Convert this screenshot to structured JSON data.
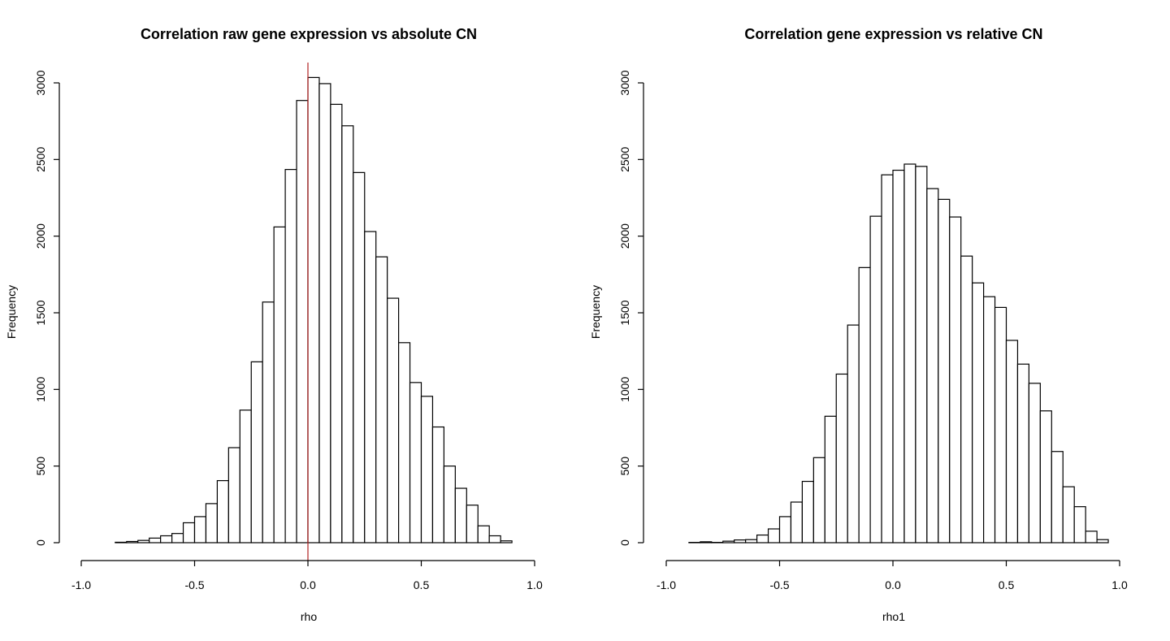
{
  "chart_data": [
    {
      "type": "histogram",
      "title": "Correlation raw gene expression vs absolute CN",
      "xlabel": "rho",
      "ylabel": "Frequency",
      "xlim": [
        -1.0,
        1.0
      ],
      "ylim": [
        0,
        3000
      ],
      "x_ticks": [
        "-1.0",
        "-0.5",
        "0.0",
        "0.5",
        "1.0"
      ],
      "y_ticks": [
        "0",
        "500",
        "1000",
        "1500",
        "2000",
        "2500",
        "3000"
      ],
      "bin_width": 0.05,
      "bin_start": -0.85,
      "values": [
        3,
        8,
        15,
        30,
        45,
        60,
        130,
        170,
        255,
        405,
        620,
        865,
        1180,
        1570,
        2060,
        2435,
        2885,
        3035,
        2995,
        2860,
        2720,
        2415,
        2030,
        1865,
        1595,
        1305,
        1045,
        955,
        755,
        500,
        355,
        245,
        110,
        45,
        12
      ],
      "reference_line": {
        "x": 0.0,
        "color": "#b22222"
      }
    },
    {
      "type": "histogram",
      "title": "Correlation gene expression vs relative CN",
      "xlabel": "rho1",
      "ylabel": "Frequency",
      "xlim": [
        -1.0,
        1.0
      ],
      "ylim": [
        0,
        3000
      ],
      "x_ticks": [
        "-1.0",
        "-0.5",
        "0.0",
        "0.5",
        "1.0"
      ],
      "y_ticks": [
        "0",
        "500",
        "1000",
        "1500",
        "2000",
        "2500",
        "3000"
      ],
      "bin_width": 0.05,
      "bin_start": -0.9,
      "values": [
        2,
        6,
        2,
        10,
        18,
        20,
        50,
        90,
        170,
        265,
        400,
        555,
        825,
        1100,
        1420,
        1795,
        2130,
        2400,
        2430,
        2470,
        2455,
        2310,
        2240,
        2125,
        1870,
        1695,
        1605,
        1535,
        1320,
        1165,
        1040,
        860,
        595,
        365,
        235,
        75,
        20
      ]
    }
  ]
}
